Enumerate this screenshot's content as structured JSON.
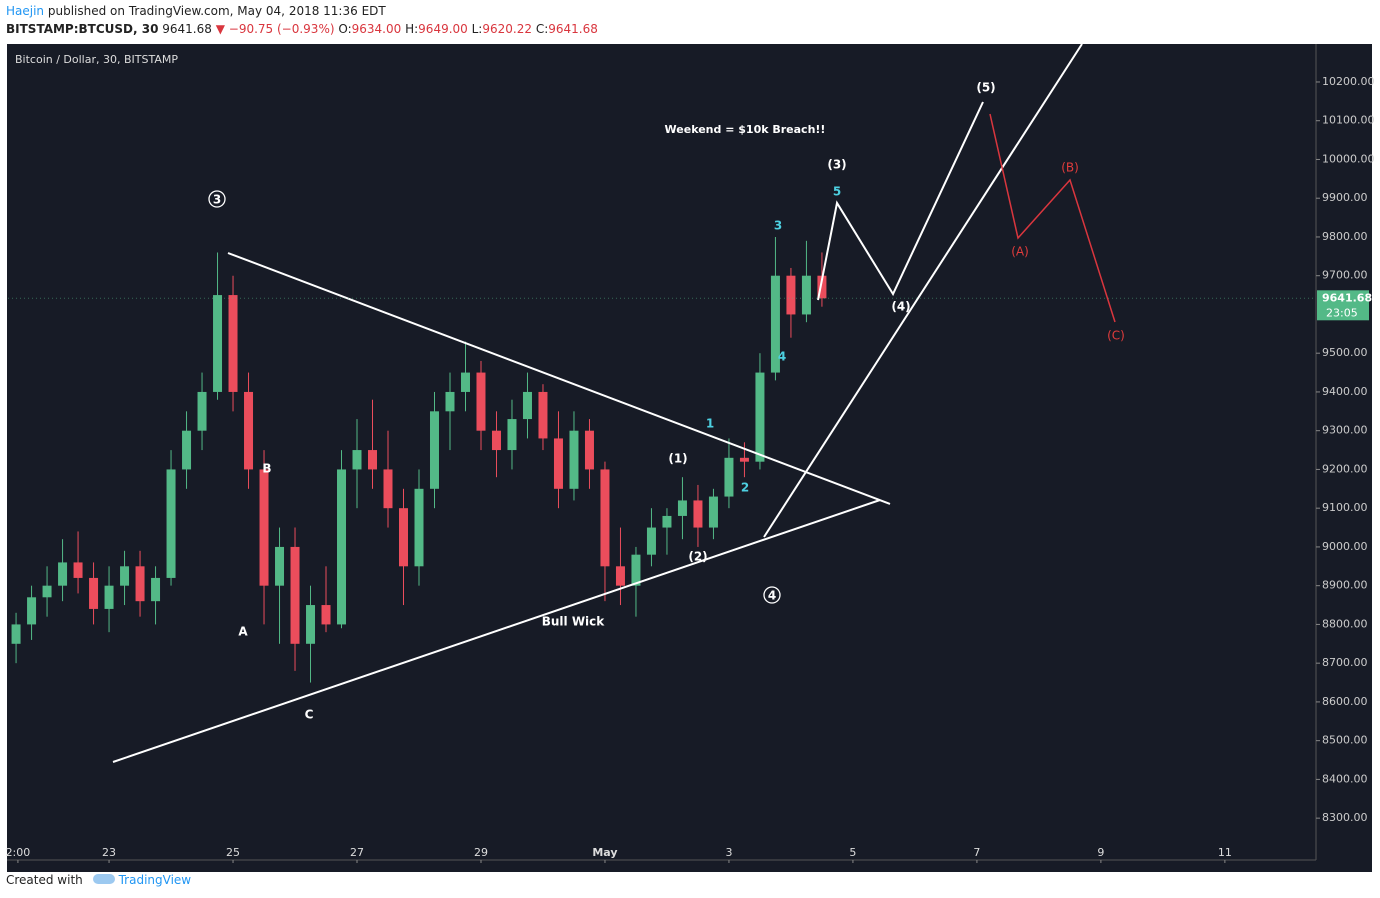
{
  "header": {
    "author": "Haejin",
    "published": "published on TradingView.com, May 04, 2018 11:36 EDT",
    "symbol": "BITSTAMP:BTCUSD, 30",
    "last": "9641.68",
    "change": "▼ −90.75 (−0.93%)",
    "ohlc": [
      {
        "label": "O:",
        "value": "9634.00"
      },
      {
        "label": "H:",
        "value": "9649.00"
      },
      {
        "label": "L:",
        "value": "9620.22"
      },
      {
        "label": "C:",
        "value": "9641.68"
      }
    ]
  },
  "chart_data": {
    "type": "candlestick",
    "title": "Bitcoin / Dollar, 30, BITSTAMP",
    "up_color": "#53b987",
    "down_color": "#eb4d5c",
    "grid": false,
    "xlim": [
      21.37,
      42.47
    ],
    "xticks": [
      {
        "value": 21.53,
        "label": "2:00"
      },
      {
        "value": 23,
        "label": "23"
      },
      {
        "value": 25,
        "label": "25"
      },
      {
        "value": 27,
        "label": "27"
      },
      {
        "value": 29,
        "label": "29"
      },
      {
        "value": 31,
        "label": "May"
      },
      {
        "value": 33,
        "label": "3"
      },
      {
        "value": 35,
        "label": "5"
      },
      {
        "value": 37,
        "label": "7"
      },
      {
        "value": 39,
        "label": "9"
      },
      {
        "value": 41,
        "label": "11"
      }
    ],
    "ylim": [
      8192,
      10298
    ],
    "yticks": [
      {
        "value": 8300,
        "label": "8300.00"
      },
      {
        "value": 8400,
        "label": "8400.00"
      },
      {
        "value": 8500,
        "label": "8500.00"
      },
      {
        "value": 8600,
        "label": "8600.00"
      },
      {
        "value": 8700,
        "label": "8700.00"
      },
      {
        "value": 8800,
        "label": "8800.00"
      },
      {
        "value": 8900,
        "label": "8900.00"
      },
      {
        "value": 9000,
        "label": "9000.00"
      },
      {
        "value": 9100,
        "label": "9100.00"
      },
      {
        "value": 9200,
        "label": "9200.00"
      },
      {
        "value": 9300,
        "label": "9300.00"
      },
      {
        "value": 9400,
        "label": "9400.00"
      },
      {
        "value": 9500,
        "label": "9500.00"
      },
      {
        "value": 9700,
        "label": "9700.00"
      },
      {
        "value": 9800,
        "label": "9800.00"
      },
      {
        "value": 9900,
        "label": "9900.00"
      },
      {
        "value": 10000,
        "label": "10000.00"
      },
      {
        "value": 10100,
        "label": "10100.00"
      },
      {
        "value": 10200,
        "label": "10200.00"
      }
    ],
    "x": [
      21.5,
      21.75,
      22,
      22.25,
      22.5,
      22.75,
      23,
      23.25,
      23.5,
      23.75,
      24,
      24.25,
      24.5,
      24.75,
      25,
      25.25,
      25.5,
      25.75,
      26,
      26.25,
      26.5,
      26.75,
      27,
      27.25,
      27.5,
      27.75,
      28,
      28.25,
      28.5,
      28.75,
      29,
      29.25,
      29.5,
      29.75,
      30,
      30.25,
      30.5,
      30.75,
      31,
      31.25,
      31.5,
      31.75,
      32,
      32.25,
      32.5,
      32.75,
      33,
      33.25,
      33.5,
      33.75,
      34,
      34.25,
      34.5
    ],
    "open": [
      8750,
      8800,
      8870,
      8900,
      8960,
      8920,
      8840,
      8900,
      8950,
      8860,
      8920,
      9200,
      9300,
      9400,
      9650,
      9400,
      9200,
      8900,
      9000,
      8750,
      8850,
      8800,
      9200,
      9250,
      9200,
      9100,
      8950,
      9150,
      9350,
      9400,
      9450,
      9300,
      9250,
      9330,
      9400,
      9280,
      9150,
      9300,
      9200,
      8950,
      8900,
      8980,
      9050,
      9080,
      9120,
      9050,
      9130,
      9230,
      9220,
      9450,
      9700,
      9600,
      9700
    ],
    "high": [
      8830,
      8900,
      8950,
      9020,
      9040,
      8960,
      8950,
      8990,
      8990,
      8950,
      9250,
      9350,
      9450,
      9760,
      9700,
      9450,
      9250,
      9050,
      9050,
      8900,
      8950,
      9250,
      9330,
      9380,
      9300,
      9150,
      9200,
      9400,
      9450,
      9530,
      9480,
      9350,
      9380,
      9450,
      9420,
      9350,
      9350,
      9330,
      9220,
      9050,
      9000,
      9100,
      9100,
      9180,
      9160,
      9150,
      9280,
      9270,
      9500,
      9800,
      9720,
      9790,
      9760
    ],
    "low": [
      8700,
      8760,
      8820,
      8860,
      8880,
      8800,
      8780,
      8850,
      8820,
      8800,
      8900,
      9150,
      9250,
      9380,
      9350,
      9150,
      8800,
      8750,
      8680,
      8650,
      8780,
      8790,
      9100,
      9150,
      9050,
      8850,
      8900,
      9100,
      9250,
      9350,
      9250,
      9180,
      9200,
      9280,
      9250,
      9100,
      9120,
      9150,
      8860,
      8850,
      8820,
      8950,
      8980,
      9020,
      9000,
      9020,
      9100,
      9180,
      9200,
      9430,
      9540,
      9580,
      9620
    ],
    "close": [
      8800,
      8870,
      8900,
      8960,
      8920,
      8840,
      8900,
      8950,
      8860,
      8920,
      9200,
      9300,
      9400,
      9650,
      9400,
      9200,
      8900,
      9000,
      8750,
      8850,
      8800,
      9200,
      9250,
      9200,
      9100,
      8950,
      9150,
      9350,
      9400,
      9450,
      9300,
      9250,
      9330,
      9400,
      9280,
      9150,
      9300,
      9200,
      8950,
      8900,
      8980,
      9050,
      9080,
      9120,
      9050,
      9130,
      9230,
      9220,
      9450,
      9700,
      9600,
      9700,
      9641.68
    ],
    "last_price_label": "9641.68",
    "countdown": "23:05",
    "annotations": {
      "w3": "3",
      "b": "B",
      "a": "A",
      "c": "C",
      "bull_wick": "Bull Wick",
      "p1": "(1)",
      "p2": "(2)",
      "s1": "1",
      "s2": "2",
      "s3": "3",
      "s4": "4",
      "s5": "5",
      "p3": "(3)",
      "p4": "(4)",
      "p5": "(5)",
      "w4": "4",
      "pa": "(A)",
      "pb": "(B)",
      "pc": "(C)",
      "headline": "Weekend = $10k Breach!!"
    }
  },
  "footer": {
    "created": "Created with",
    "brand": "TradingView"
  }
}
